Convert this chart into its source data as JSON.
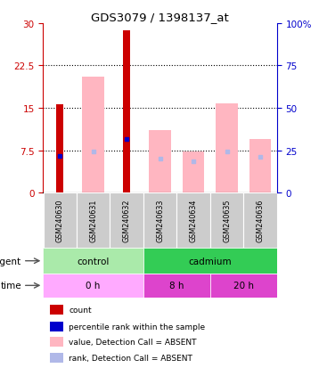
{
  "title": "GDS3079 / 1398137_at",
  "samples": [
    "GSM240630",
    "GSM240631",
    "GSM240632",
    "GSM240633",
    "GSM240634",
    "GSM240635",
    "GSM240636"
  ],
  "red_bars": [
    15.7,
    0,
    28.7,
    0,
    0,
    0,
    0
  ],
  "pink_bars": [
    0,
    20.5,
    0,
    11.0,
    7.2,
    15.8,
    9.5
  ],
  "blue_squares_y": [
    6.5,
    0,
    9.5,
    0,
    0,
    0,
    0
  ],
  "lightblue_squares_y": [
    0,
    7.2,
    0,
    6.0,
    5.5,
    7.2,
    6.3
  ],
  "ylim_left": [
    0,
    30
  ],
  "ylim_right": [
    0,
    100
  ],
  "yticks_left": [
    0,
    7.5,
    15,
    22.5,
    30
  ],
  "ytick_labels_left": [
    "0",
    "7.5",
    "15",
    "22.5",
    "30"
  ],
  "yticks_right": [
    0,
    25,
    50,
    75,
    100
  ],
  "ytick_labels_right": [
    "0",
    "25",
    "50",
    "75",
    "100%"
  ],
  "agent_labels": [
    {
      "text": "control",
      "start": 0,
      "end": 3,
      "color": "#aaeaaa"
    },
    {
      "text": "cadmium",
      "start": 3,
      "end": 7,
      "color": "#33cc55"
    }
  ],
  "time_labels": [
    {
      "text": "0 h",
      "start": 0,
      "end": 3,
      "color": "#ffaaff"
    },
    {
      "text": "8 h",
      "start": 3,
      "end": 5,
      "color": "#dd44cc"
    },
    {
      "text": "20 h",
      "start": 5,
      "end": 7,
      "color": "#dd44cc"
    }
  ],
  "legend_items": [
    {
      "color": "#cc0000",
      "label": "count"
    },
    {
      "color": "#0000cc",
      "label": "percentile rank within the sample"
    },
    {
      "color": "#ffb6c1",
      "label": "value, Detection Call = ABSENT"
    },
    {
      "color": "#b0b8e8",
      "label": "rank, Detection Call = ABSENT"
    }
  ],
  "red_color": "#cc0000",
  "pink_color": "#ffb6c1",
  "blue_color": "#0000cc",
  "lightblue_color": "#b0b8e8",
  "bg_color": "#ffffff",
  "tick_color_left": "#cc0000",
  "tick_color_right": "#0000cc",
  "gray_box_color": "#cccccc",
  "grid_color": "black"
}
